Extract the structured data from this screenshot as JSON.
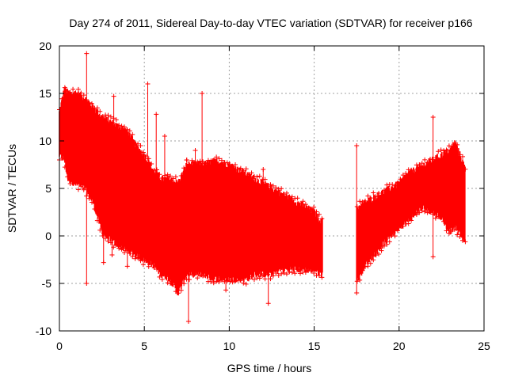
{
  "chart_data": {
    "type": "scatter",
    "title": "Day 274 of 2011, Sidereal Day-to-day VTEC variation (SDTVAR) for receiver p166",
    "xlabel": "GPS time / hours",
    "ylabel": "SDTVAR / TECUs",
    "xlim": [
      0,
      25
    ],
    "ylim": [
      -10,
      20
    ],
    "xticks": [
      0,
      5,
      10,
      15,
      20,
      25
    ],
    "yticks": [
      -10,
      -5,
      0,
      5,
      10,
      15,
      20
    ],
    "grid": true,
    "marker": "+",
    "color": "#ff0000",
    "data_gap": [
      15.5,
      17.5
    ],
    "envelope": [
      {
        "x": 0.0,
        "lo": 8.5,
        "hi": 13.0
      },
      {
        "x": 0.3,
        "lo": 8.0,
        "hi": 15.5
      },
      {
        "x": 0.5,
        "lo": 6.0,
        "hi": 15.0
      },
      {
        "x": 1.0,
        "lo": 5.5,
        "hi": 15.0
      },
      {
        "x": 1.5,
        "lo": 5.0,
        "hi": 14.5
      },
      {
        "x": 2.0,
        "lo": 3.5,
        "hi": 13.5
      },
      {
        "x": 2.5,
        "lo": 0.5,
        "hi": 12.5
      },
      {
        "x": 3.0,
        "lo": -0.5,
        "hi": 12.0
      },
      {
        "x": 3.5,
        "lo": -1.0,
        "hi": 11.5
      },
      {
        "x": 4.0,
        "lo": -1.5,
        "hi": 11.0
      },
      {
        "x": 4.5,
        "lo": -2.0,
        "hi": 9.5
      },
      {
        "x": 5.0,
        "lo": -2.5,
        "hi": 8.5
      },
      {
        "x": 5.5,
        "lo": -3.0,
        "hi": 7.0
      },
      {
        "x": 6.0,
        "lo": -4.0,
        "hi": 6.0
      },
      {
        "x": 6.5,
        "lo": -4.5,
        "hi": 6.0
      },
      {
        "x": 7.0,
        "lo": -6.0,
        "hi": 5.5
      },
      {
        "x": 7.5,
        "lo": -4.0,
        "hi": 7.5
      },
      {
        "x": 8.0,
        "lo": -4.0,
        "hi": 7.5
      },
      {
        "x": 8.5,
        "lo": -4.0,
        "hi": 7.5
      },
      {
        "x": 9.0,
        "lo": -4.5,
        "hi": 7.8
      },
      {
        "x": 9.5,
        "lo": -4.5,
        "hi": 7.8
      },
      {
        "x": 10.0,
        "lo": -4.5,
        "hi": 7.5
      },
      {
        "x": 10.5,
        "lo": -4.5,
        "hi": 7.0
      },
      {
        "x": 11.0,
        "lo": -4.5,
        "hi": 6.5
      },
      {
        "x": 11.5,
        "lo": -4.0,
        "hi": 6.0
      },
      {
        "x": 12.0,
        "lo": -4.0,
        "hi": 5.5
      },
      {
        "x": 12.5,
        "lo": -4.0,
        "hi": 5.0
      },
      {
        "x": 13.0,
        "lo": -3.5,
        "hi": 4.5
      },
      {
        "x": 13.5,
        "lo": -3.5,
        "hi": 4.0
      },
      {
        "x": 14.0,
        "lo": -3.5,
        "hi": 3.5
      },
      {
        "x": 14.5,
        "lo": -3.5,
        "hi": 3.0
      },
      {
        "x": 15.0,
        "lo": -3.5,
        "hi": 2.5
      },
      {
        "x": 15.4,
        "lo": -4.0,
        "hi": 1.5
      },
      {
        "x": 17.6,
        "lo": -4.5,
        "hi": 3.0
      },
      {
        "x": 18.0,
        "lo": -3.0,
        "hi": 3.5
      },
      {
        "x": 18.5,
        "lo": -2.0,
        "hi": 4.0
      },
      {
        "x": 19.0,
        "lo": -1.0,
        "hi": 4.5
      },
      {
        "x": 19.5,
        "lo": 0.0,
        "hi": 5.0
      },
      {
        "x": 20.0,
        "lo": 1.0,
        "hi": 5.5
      },
      {
        "x": 20.5,
        "lo": 1.5,
        "hi": 6.5
      },
      {
        "x": 21.0,
        "lo": 2.5,
        "hi": 7.0
      },
      {
        "x": 21.5,
        "lo": 3.0,
        "hi": 7.5
      },
      {
        "x": 22.0,
        "lo": 2.5,
        "hi": 8.0
      },
      {
        "x": 22.5,
        "lo": 2.0,
        "hi": 8.5
      },
      {
        "x": 23.0,
        "lo": 0.5,
        "hi": 9.0
      },
      {
        "x": 23.3,
        "lo": 1.0,
        "hi": 9.8
      },
      {
        "x": 23.7,
        "lo": 0.0,
        "hi": 8.0
      },
      {
        "x": 23.9,
        "lo": -0.5,
        "hi": 7.0
      }
    ],
    "outliers": [
      {
        "x": 1.6,
        "y": 19.2
      },
      {
        "x": 1.6,
        "y": -5.0
      },
      {
        "x": 3.2,
        "y": 14.7
      },
      {
        "x": 5.2,
        "y": 16.0
      },
      {
        "x": 8.4,
        "y": 15.0
      },
      {
        "x": 7.6,
        "y": -9.0
      },
      {
        "x": 12.3,
        "y": -7.1
      },
      {
        "x": 3.1,
        "y": -2.0
      },
      {
        "x": 4.0,
        "y": -3.2
      },
      {
        "x": 9.8,
        "y": -5.7
      },
      {
        "x": 17.5,
        "y": 9.5
      },
      {
        "x": 22.0,
        "y": 12.5
      },
      {
        "x": 22.0,
        "y": -2.2
      },
      {
        "x": 5.7,
        "y": 12.8
      },
      {
        "x": 6.2,
        "y": 10.5
      },
      {
        "x": 7.5,
        "y": 8.0
      },
      {
        "x": 8.0,
        "y": 9.0
      },
      {
        "x": 12.0,
        "y": 7.0
      },
      {
        "x": 17.5,
        "y": -6.0
      },
      {
        "x": 2.6,
        "y": -2.8
      }
    ]
  }
}
